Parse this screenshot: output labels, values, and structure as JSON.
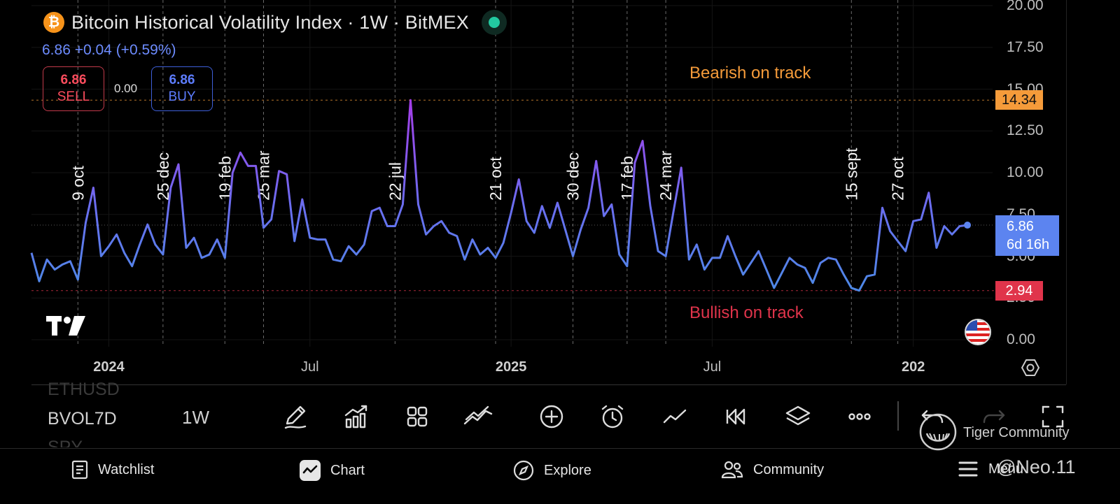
{
  "header": {
    "title": "Bitcoin Historical Volatility Index · 1W · BitMEX",
    "btc_symbol": "₿",
    "last_value": "6.86",
    "change": "+0.04 (+0.59%)"
  },
  "trade": {
    "sell_value": "6.86",
    "sell_label": "SELL",
    "spread": "0.00",
    "buy_value": "6.86",
    "buy_label": "BUY"
  },
  "chart_data": {
    "type": "line",
    "title": "Bitcoin Historical Volatility Index · 1W · BitMEX",
    "ylim": [
      0,
      20
    ],
    "y_ticks": [
      "0.00",
      "2.50",
      "5.00",
      "7.50",
      "10.00",
      "12.50",
      "15.00",
      "17.50",
      "20.00"
    ],
    "x_ticks": [
      {
        "label": "2024",
        "week": 10,
        "bold": true
      },
      {
        "label": "Jul",
        "week": 36,
        "bold": false
      },
      {
        "label": "2025",
        "week": 62,
        "bold": true
      },
      {
        "label": "Jul",
        "week": 88,
        "bold": false
      },
      {
        "label": "202",
        "week": 114,
        "bold": true
      }
    ],
    "series": [
      {
        "name": "BVOL7D",
        "values": [
          5.2,
          3.5,
          4.8,
          4.2,
          4.5,
          4.7,
          3.6,
          7.0,
          9.1,
          5.0,
          5.6,
          6.3,
          5.2,
          4.4,
          5.7,
          6.9,
          5.7,
          5.1,
          9.1,
          10.5,
          5.5,
          6.1,
          4.9,
          5.1,
          6.0,
          4.9,
          10.0,
          11.2,
          10.4,
          10.4,
          6.7,
          7.2,
          10.1,
          9.9,
          5.9,
          8.4,
          6.1,
          6.0,
          6.0,
          4.8,
          4.7,
          5.6,
          5.1,
          5.7,
          7.7,
          7.9,
          6.8,
          6.8,
          8.1,
          14.34,
          8.1,
          6.3,
          6.8,
          7.1,
          6.4,
          6.2,
          4.8,
          6.0,
          5.1,
          5.5,
          4.9,
          5.8,
          7.6,
          9.6,
          7.1,
          6.4,
          8.0,
          6.7,
          8.2,
          6.6,
          5.0,
          6.6,
          7.9,
          10.7,
          7.4,
          8.1,
          5.1,
          4.4,
          10.6,
          11.9,
          8.0,
          5.3,
          5.0,
          7.7,
          10.3,
          4.8,
          5.7,
          4.2,
          4.9,
          4.9,
          6.2,
          5.0,
          3.9,
          4.6,
          5.3,
          4.2,
          3.1,
          4.0,
          4.9,
          4.5,
          4.3,
          3.4,
          4.6,
          4.9,
          4.8,
          3.9,
          3.1,
          2.94,
          3.8,
          3.9,
          7.9,
          6.5,
          5.9,
          5.3,
          7.1,
          7.2,
          8.8,
          5.5,
          6.8,
          6.3,
          6.8,
          6.86
        ]
      }
    ],
    "event_markers": [
      {
        "label": "9 oct",
        "week": 6
      },
      {
        "label": "25 dec",
        "week": 17
      },
      {
        "label": "19 feb",
        "week": 25
      },
      {
        "label": "25 mar",
        "week": 30
      },
      {
        "label": "22 jul",
        "week": 47
      },
      {
        "label": "21 oct",
        "week": 60
      },
      {
        "label": "30 dec",
        "week": 70
      },
      {
        "label": "17 feb",
        "week": 77
      },
      {
        "label": "24 mar",
        "week": 82
      },
      {
        "label": "15 sept",
        "week": 106
      },
      {
        "label": "27 oct",
        "week": 112
      }
    ],
    "resistance": {
      "value": 14.34,
      "label": "14.34",
      "annotation": "Bearish on track",
      "color": "#f59b3a"
    },
    "support": {
      "value": 2.94,
      "label": "2.94",
      "annotation": "Bullish on track",
      "color": "#e0344b"
    },
    "current": {
      "value": 6.86,
      "label": "6.86",
      "countdown": "6d 16h",
      "color": "#5c84f0"
    },
    "legend": "none"
  },
  "toolbar": {
    "symbols": [
      "ETHUSD",
      "BVOL7D",
      "SPY"
    ],
    "timeframe": "1W",
    "tools": [
      {
        "name": "draw-tool",
        "icon": "pencil-icon"
      },
      {
        "name": "indicators-tool",
        "icon": "chart-bars-icon"
      },
      {
        "name": "templates-tool",
        "icon": "grid-icon"
      },
      {
        "name": "compare-tool",
        "icon": "trend-icon"
      },
      {
        "name": "add-tool",
        "icon": "plus-circle-icon"
      },
      {
        "name": "alert-tool",
        "icon": "alarm-icon"
      },
      {
        "name": "chart-type-tool",
        "icon": "line-icon"
      },
      {
        "name": "replay-tool",
        "icon": "rewind-icon"
      },
      {
        "name": "layers-tool",
        "icon": "layers-icon"
      },
      {
        "name": "more-tool",
        "icon": "more-icon"
      },
      {
        "name": "undo-tool",
        "icon": "undo-icon"
      },
      {
        "name": "redo-tool",
        "icon": "redo-icon"
      },
      {
        "name": "fullscreen-tool",
        "icon": "fullscreen-icon"
      }
    ]
  },
  "nav": {
    "watchlist": "Watchlist",
    "chart": "Chart",
    "explore": "Explore",
    "community": "Community",
    "menu": "Menu"
  },
  "watermark": {
    "tiger": "Tiger Community",
    "handle": "@Neo.11"
  },
  "colors": {
    "line_start": "#4f86e6",
    "line_peak": "#a040e8",
    "background": "#000000"
  }
}
